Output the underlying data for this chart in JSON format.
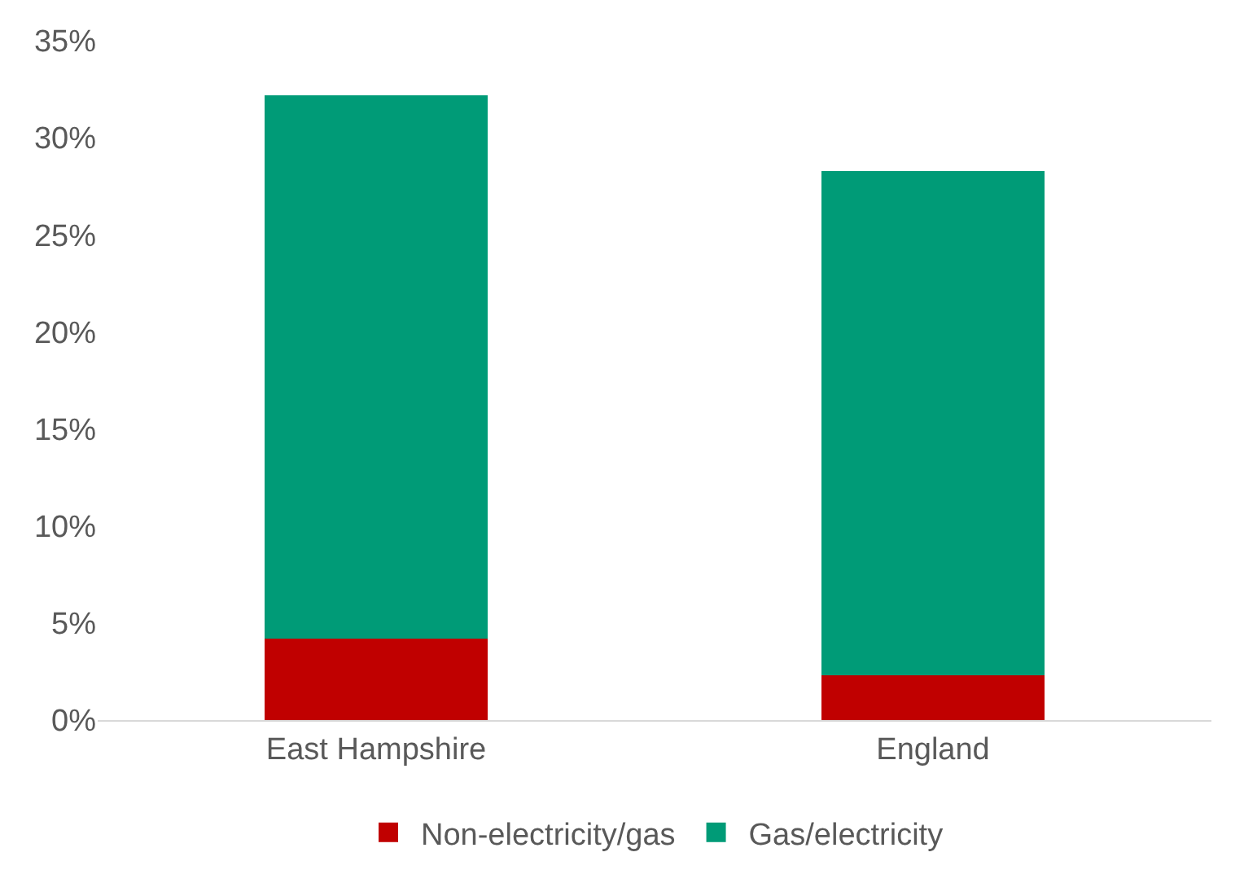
{
  "chart_data": {
    "type": "bar",
    "stacked": true,
    "categories": [
      "East Hampshire",
      "England"
    ],
    "series": [
      {
        "name": "Non-electricity/gas",
        "color": "#c00000",
        "values": [
          4.2,
          2.3
        ]
      },
      {
        "name": "Gas/electricity",
        "color": "#009b77",
        "values": [
          28.0,
          26.0
        ]
      }
    ],
    "ylim": [
      0,
      35
    ],
    "yticks": [
      {
        "value": 0,
        "label": "0%"
      },
      {
        "value": 5,
        "label": "5%"
      },
      {
        "value": 10,
        "label": "10%"
      },
      {
        "value": 15,
        "label": "15%"
      },
      {
        "value": 20,
        "label": "20%"
      },
      {
        "value": 25,
        "label": "25%"
      },
      {
        "value": 30,
        "label": "30%"
      },
      {
        "value": 35,
        "label": "35%"
      }
    ],
    "legend": "bottom"
  }
}
